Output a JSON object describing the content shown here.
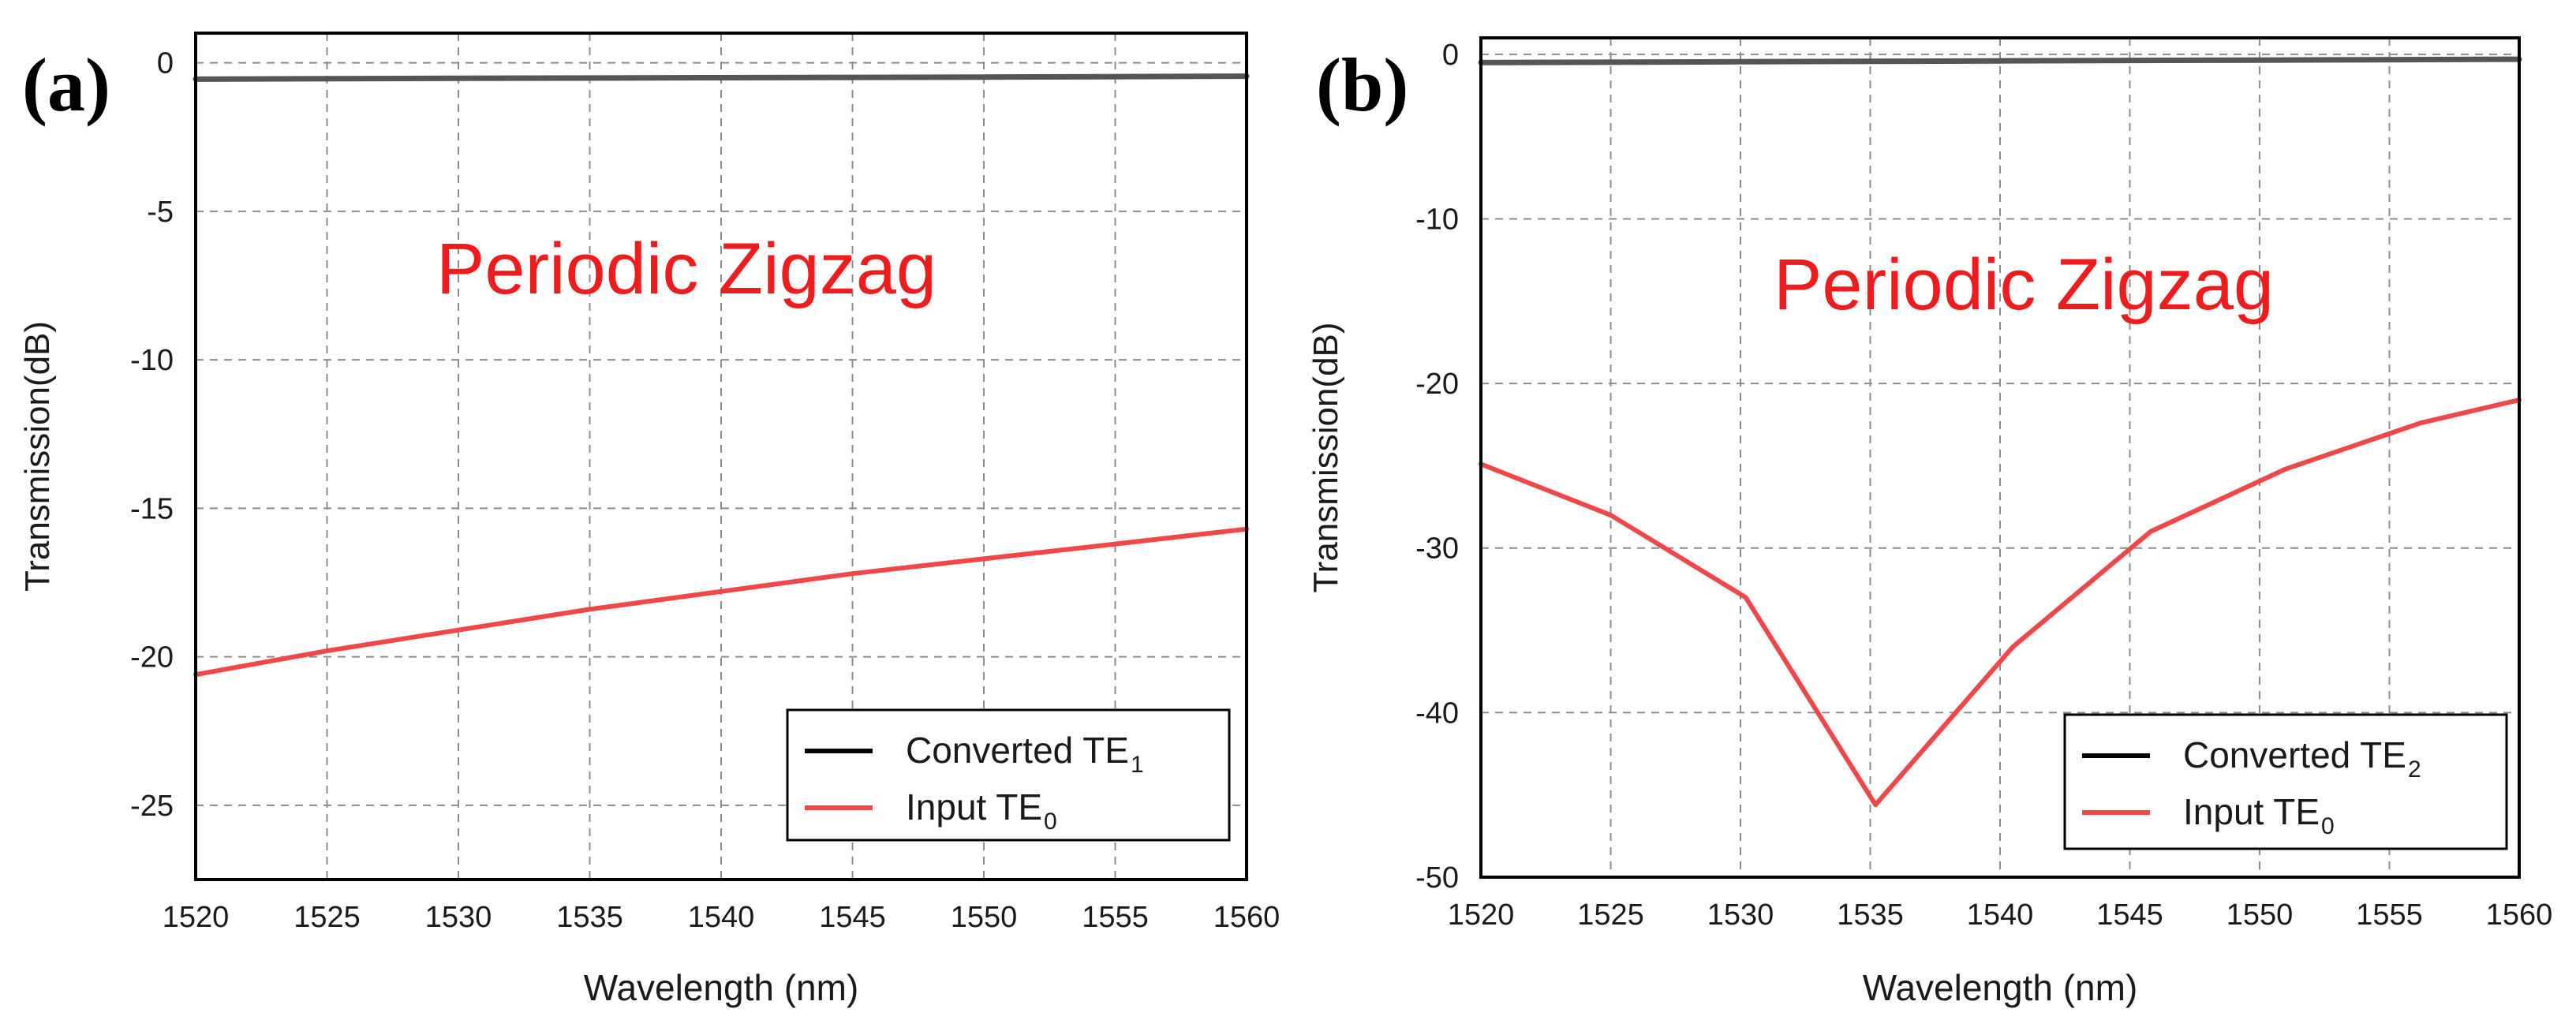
{
  "colors": {
    "converted": "#555555",
    "input": "#f04848",
    "annotation": "#ee1c1c",
    "grid": "#8c8c8c",
    "axis": "#000000"
  },
  "chart_data": [
    {
      "type": "line",
      "panel_label": "(a)",
      "annotation": "Periodic Zigzag",
      "xlabel": "Wavelength (nm)",
      "ylabel": "Transmission(dB)",
      "xlim": [
        1520,
        1560
      ],
      "ylim": [
        -27.5,
        1
      ],
      "xticks": [
        1520,
        1525,
        1530,
        1535,
        1540,
        1545,
        1550,
        1555,
        1560
      ],
      "yticks": [
        0,
        -5,
        -10,
        -15,
        -20,
        -25
      ],
      "grid": true,
      "legend_position": "bottom-right",
      "series": [
        {
          "name": "Converted TE1",
          "legend_text": "Converted TE",
          "legend_sub": "1",
          "color": "#555555",
          "x": [
            1520,
            1530,
            1540,
            1550,
            1560
          ],
          "y": [
            -0.55,
            -0.52,
            -0.5,
            -0.48,
            -0.45
          ]
        },
        {
          "name": "Input TE0",
          "legend_text": "Input TE",
          "legend_sub": "0",
          "color": "#f04848",
          "x": [
            1520,
            1525,
            1530,
            1535,
            1540,
            1545,
            1550,
            1555,
            1560
          ],
          "y": [
            -20.6,
            -19.8,
            -19.1,
            -18.4,
            -17.8,
            -17.2,
            -16.7,
            -16.2,
            -15.7
          ]
        }
      ]
    },
    {
      "type": "line",
      "panel_label": "(b)",
      "annotation": "Periodic Zigzag",
      "xlabel": "Wavelength (nm)",
      "ylabel": "Transmission(dB)",
      "xlim": [
        1520,
        1560
      ],
      "ylim": [
        -50,
        1
      ],
      "xticks": [
        1520,
        1525,
        1530,
        1535,
        1540,
        1545,
        1550,
        1555,
        1560
      ],
      "yticks": [
        0,
        -10,
        -20,
        -30,
        -40,
        -50
      ],
      "grid": true,
      "legend_position": "bottom-right",
      "series": [
        {
          "name": "Converted TE2",
          "legend_text": "Converted TE",
          "legend_sub": "2",
          "color": "#555555",
          "x": [
            1520,
            1530,
            1540,
            1550,
            1560
          ],
          "y": [
            -0.5,
            -0.45,
            -0.4,
            -0.35,
            -0.3
          ]
        },
        {
          "name": "Input TE0",
          "legend_text": "Input TE",
          "legend_sub": "0",
          "color": "#f04848",
          "x": [
            1520,
            1525,
            1530.2,
            1535.2,
            1540.5,
            1545.8,
            1551,
            1556.2,
            1560
          ],
          "y": [
            -24.9,
            -28,
            -33,
            -45.6,
            -36,
            -29,
            -25.2,
            -22.4,
            -21
          ]
        }
      ]
    }
  ]
}
